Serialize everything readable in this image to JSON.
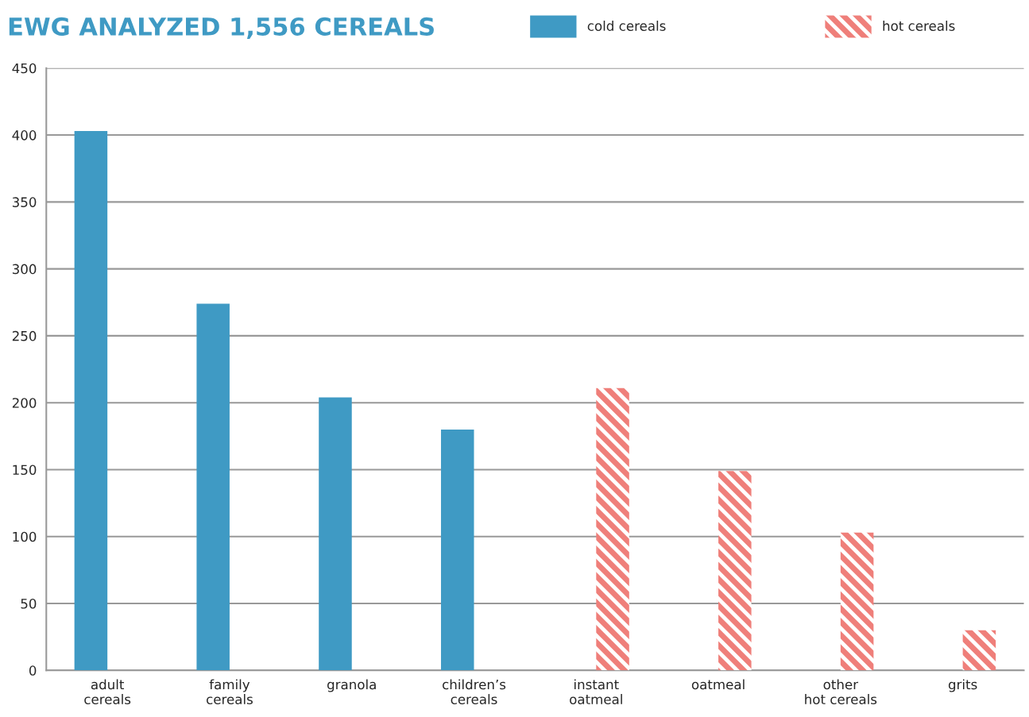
{
  "chart_data": {
    "type": "bar",
    "title": "EWG ANALYZED 1,556 CEREALS",
    "categories": [
      "adult\ncereals",
      "family\ncereals",
      "granola",
      "children’s\ncereals",
      "instant\noatmeal",
      "oatmeal",
      "other\nhot cereals",
      "grits"
    ],
    "series": [
      {
        "name": "cold cereals",
        "color": "#3f9ac4",
        "values": [
          403,
          274,
          204,
          180,
          null,
          null,
          null,
          null
        ]
      },
      {
        "name": "hot cereals",
        "color": "#ef7f7a",
        "values": [
          null,
          null,
          null,
          null,
          211,
          149,
          103,
          30
        ]
      }
    ],
    "ylim": [
      0,
      450
    ],
    "yticks": [
      0,
      50,
      100,
      150,
      200,
      250,
      300,
      350,
      400,
      450
    ],
    "grid": "y",
    "legend": "top right"
  }
}
